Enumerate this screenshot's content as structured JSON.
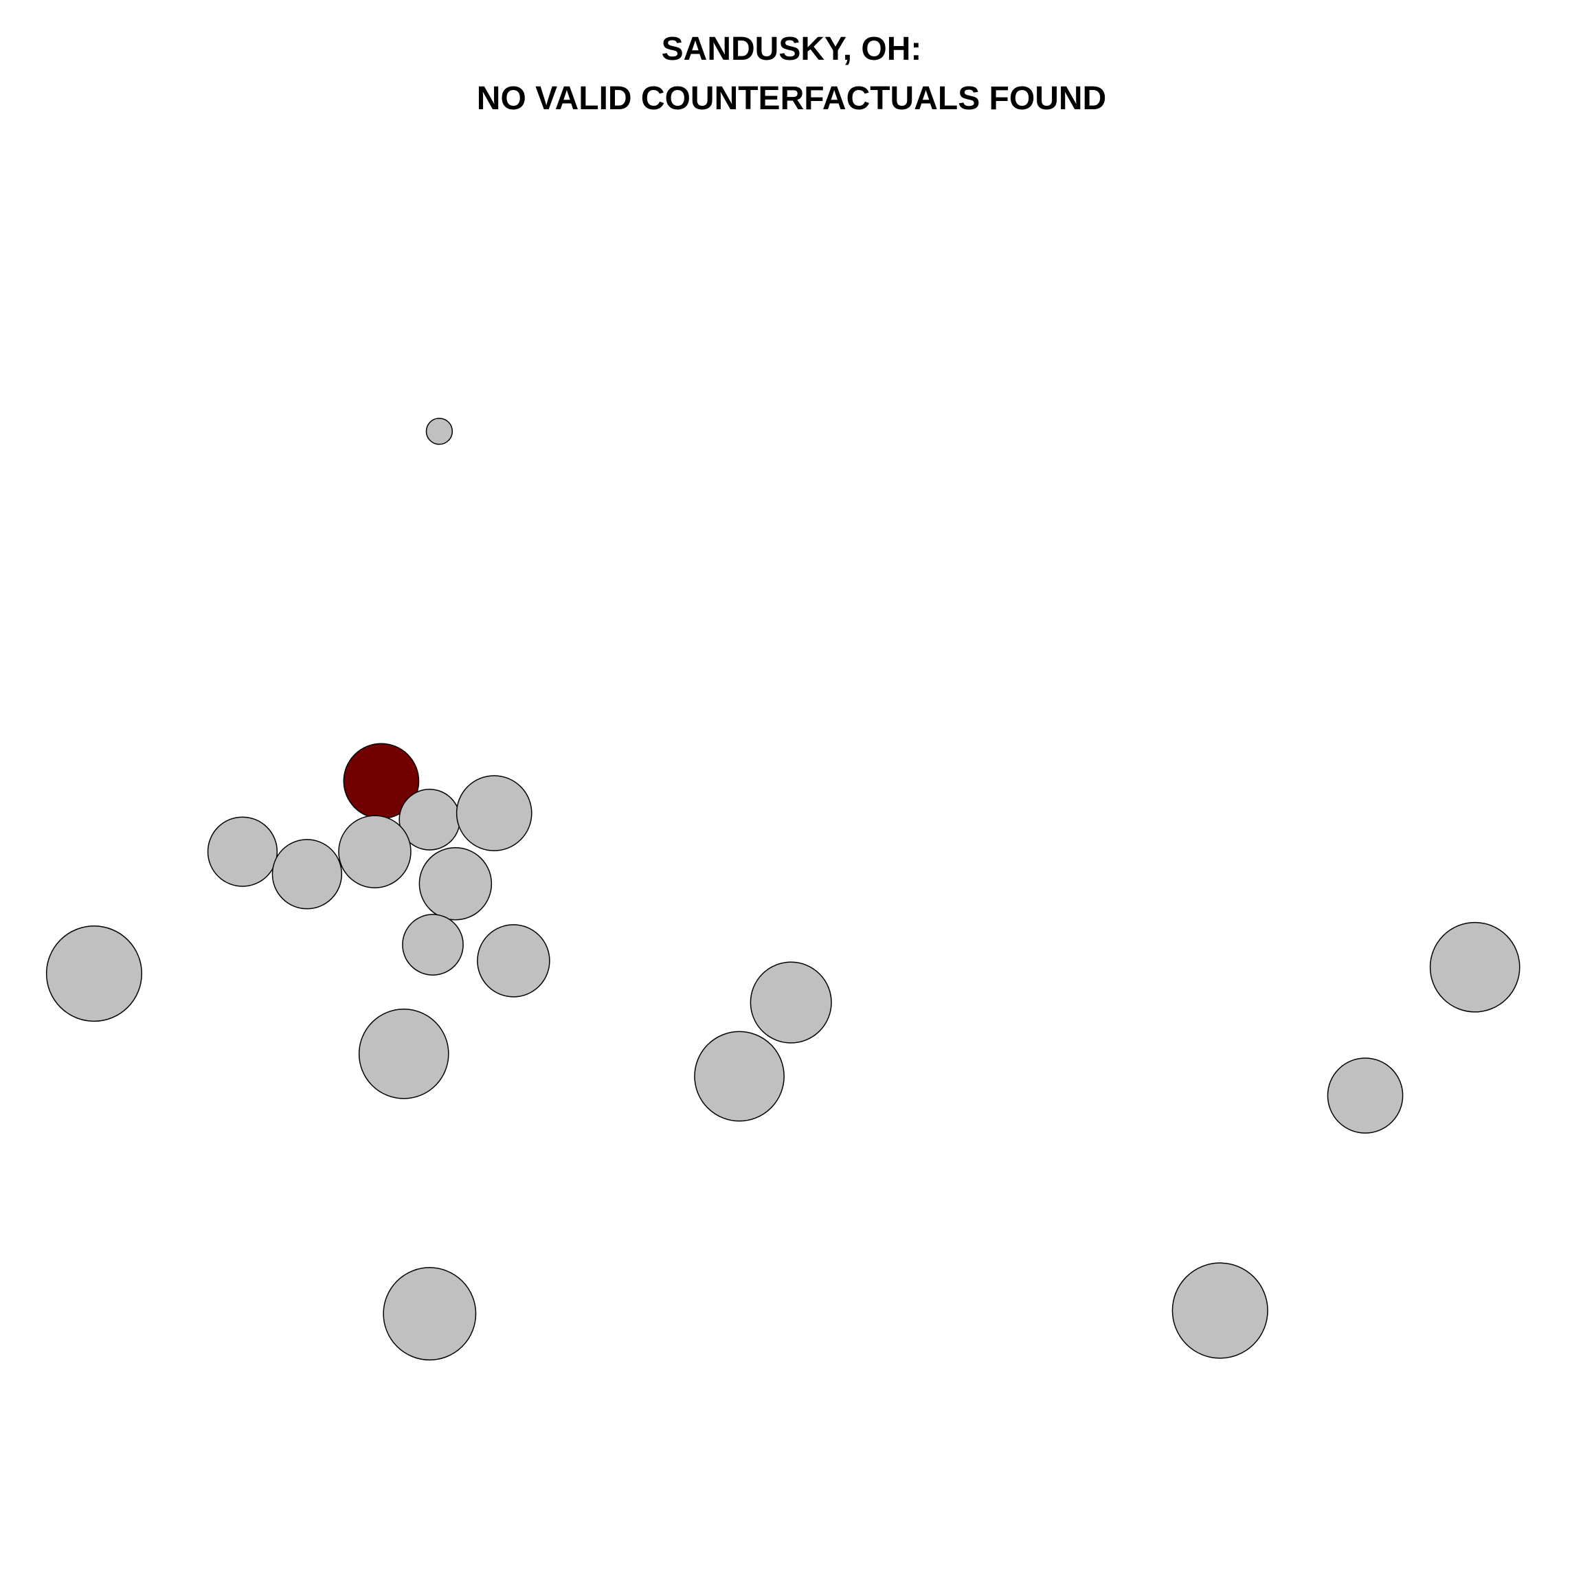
{
  "chart_data": {
    "type": "scatter",
    "title_line1": "SANDUSKY, OH:",
    "title_line2": "NO VALID COUNTERFACTUALS FOUND",
    "axes_visible": false,
    "grid": false,
    "colors": {
      "focal": "#720000",
      "other": "#c0c0c0",
      "outline": "#000000"
    },
    "points": [
      {
        "x": 5.85,
        "y": 16.35,
        "size": 0.9,
        "focal": false
      },
      {
        "x": 4.95,
        "y": 10.9,
        "size": 2.6,
        "focal": true
      },
      {
        "x": 5.7,
        "y": 10.3,
        "size": 2.1,
        "focal": false
      },
      {
        "x": 6.7,
        "y": 10.4,
        "size": 2.6,
        "focal": false
      },
      {
        "x": 2.8,
        "y": 9.8,
        "size": 2.4,
        "focal": false
      },
      {
        "x": 3.8,
        "y": 9.45,
        "size": 2.4,
        "focal": false
      },
      {
        "x": 4.85,
        "y": 9.8,
        "size": 2.5,
        "focal": false
      },
      {
        "x": 6.1,
        "y": 9.3,
        "size": 2.5,
        "focal": false
      },
      {
        "x": 5.75,
        "y": 8.35,
        "size": 2.1,
        "focal": false
      },
      {
        "x": 7.0,
        "y": 8.1,
        "size": 2.5,
        "focal": false
      },
      {
        "x": 0.5,
        "y": 7.9,
        "size": 3.3,
        "focal": false
      },
      {
        "x": 5.3,
        "y": 6.65,
        "size": 3.1,
        "focal": false
      },
      {
        "x": 11.3,
        "y": 7.45,
        "size": 2.8,
        "focal": false
      },
      {
        "x": 10.5,
        "y": 6.3,
        "size": 3.1,
        "focal": false
      },
      {
        "x": 21.9,
        "y": 8.0,
        "size": 3.1,
        "focal": false
      },
      {
        "x": 20.2,
        "y": 6.0,
        "size": 2.6,
        "focal": false
      },
      {
        "x": 5.7,
        "y": 2.6,
        "size": 3.2,
        "focal": false
      },
      {
        "x": 17.95,
        "y": 2.65,
        "size": 3.3,
        "focal": false
      }
    ],
    "xlim": [
      0,
      23
    ],
    "ylim": [
      0,
      22
    ]
  }
}
